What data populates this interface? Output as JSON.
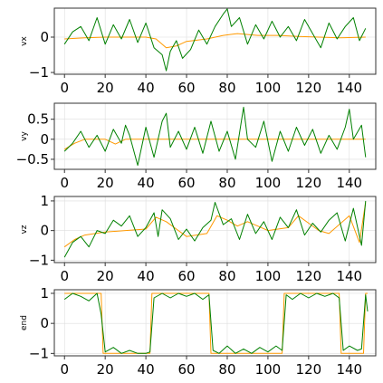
{
  "colors": {
    "target": "#ff9900",
    "prediction": "#008000"
  },
  "chart_data": [
    {
      "type": "line",
      "ylabel": "vx",
      "xlim": [
        -5,
        153
      ],
      "ylim": [
        -1.05,
        0.82
      ],
      "xticks": [
        0,
        20,
        40,
        60,
        80,
        100,
        120,
        140
      ],
      "yticks": [
        -1,
        0
      ],
      "grid": true,
      "series": [
        {
          "color": "#ff9900",
          "points": [
            [
              0,
              -0.05
            ],
            [
              10,
              -0.02
            ],
            [
              20,
              0.0
            ],
            [
              30,
              0.0
            ],
            [
              40,
              0.0
            ],
            [
              45,
              -0.05
            ],
            [
              50,
              -0.3
            ],
            [
              55,
              -0.25
            ],
            [
              60,
              -0.12
            ],
            [
              70,
              -0.05
            ],
            [
              78,
              0.05
            ],
            [
              85,
              0.1
            ],
            [
              95,
              0.05
            ],
            [
              105,
              0.05
            ],
            [
              115,
              0.02
            ],
            [
              125,
              0.0
            ],
            [
              135,
              -0.02
            ],
            [
              148,
              0.0
            ]
          ]
        },
        {
          "color": "#008000",
          "points": [
            [
              0,
              -0.2
            ],
            [
              4,
              0.15
            ],
            [
              8,
              0.3
            ],
            [
              12,
              -0.1
            ],
            [
              16,
              0.55
            ],
            [
              20,
              -0.2
            ],
            [
              24,
              0.35
            ],
            [
              28,
              -0.05
            ],
            [
              32,
              0.5
            ],
            [
              36,
              -0.15
            ],
            [
              40,
              0.4
            ],
            [
              44,
              -0.3
            ],
            [
              48,
              -0.5
            ],
            [
              50,
              -0.95
            ],
            [
              52,
              -0.4
            ],
            [
              55,
              -0.1
            ],
            [
              58,
              -0.6
            ],
            [
              62,
              -0.35
            ],
            [
              66,
              0.2
            ],
            [
              70,
              -0.2
            ],
            [
              74,
              0.3
            ],
            [
              78,
              0.65
            ],
            [
              80,
              0.8
            ],
            [
              82,
              0.3
            ],
            [
              86,
              0.55
            ],
            [
              90,
              -0.2
            ],
            [
              94,
              0.35
            ],
            [
              98,
              -0.05
            ],
            [
              102,
              0.45
            ],
            [
              106,
              0.0
            ],
            [
              110,
              0.3
            ],
            [
              114,
              -0.1
            ],
            [
              118,
              0.5
            ],
            [
              122,
              0.1
            ],
            [
              126,
              -0.3
            ],
            [
              130,
              0.4
            ],
            [
              134,
              -0.05
            ],
            [
              138,
              0.3
            ],
            [
              142,
              0.55
            ],
            [
              145,
              -0.1
            ],
            [
              148,
              0.25
            ]
          ]
        }
      ]
    },
    {
      "type": "line",
      "ylabel": "vy",
      "xlim": [
        -5,
        153
      ],
      "ylim": [
        -0.75,
        0.9
      ],
      "xticks": [
        0,
        20,
        40,
        60,
        80,
        100,
        120,
        140
      ],
      "yticks": [
        -0.5,
        0.0,
        0.5
      ],
      "grid": true,
      "series": [
        {
          "color": "#ff9900",
          "points": [
            [
              0,
              -0.25
            ],
            [
              5,
              -0.1
            ],
            [
              10,
              0.0
            ],
            [
              20,
              0.0
            ],
            [
              25,
              -0.12
            ],
            [
              30,
              0.0
            ],
            [
              40,
              0.0
            ],
            [
              60,
              0.0
            ],
            [
              80,
              0.0
            ],
            [
              100,
              0.0
            ],
            [
              120,
              0.0
            ],
            [
              148,
              0.0
            ]
          ]
        },
        {
          "color": "#008000",
          "points": [
            [
              0,
              -0.3
            ],
            [
              4,
              -0.1
            ],
            [
              8,
              0.2
            ],
            [
              12,
              -0.2
            ],
            [
              16,
              0.1
            ],
            [
              20,
              -0.3
            ],
            [
              24,
              0.25
            ],
            [
              28,
              -0.1
            ],
            [
              30,
              0.35
            ],
            [
              32,
              0.1
            ],
            [
              36,
              -0.65
            ],
            [
              40,
              0.3
            ],
            [
              44,
              -0.45
            ],
            [
              48,
              0.45
            ],
            [
              50,
              0.65
            ],
            [
              52,
              -0.2
            ],
            [
              56,
              0.2
            ],
            [
              60,
              -0.25
            ],
            [
              64,
              0.3
            ],
            [
              68,
              -0.35
            ],
            [
              72,
              0.45
            ],
            [
              76,
              -0.3
            ],
            [
              80,
              0.2
            ],
            [
              84,
              -0.5
            ],
            [
              88,
              0.8
            ],
            [
              90,
              0.0
            ],
            [
              94,
              -0.2
            ],
            [
              98,
              0.45
            ],
            [
              102,
              -0.55
            ],
            [
              106,
              0.2
            ],
            [
              110,
              -0.3
            ],
            [
              114,
              0.3
            ],
            [
              118,
              -0.15
            ],
            [
              122,
              0.25
            ],
            [
              126,
              -0.35
            ],
            [
              130,
              0.1
            ],
            [
              134,
              -0.25
            ],
            [
              138,
              0.3
            ],
            [
              140,
              0.75
            ],
            [
              142,
              0.0
            ],
            [
              146,
              0.35
            ],
            [
              148,
              -0.45
            ]
          ]
        }
      ]
    },
    {
      "type": "line",
      "ylabel": "vz",
      "xlim": [
        -5,
        153
      ],
      "ylim": [
        -1.08,
        1.15
      ],
      "xticks": [
        0,
        20,
        40,
        60,
        80,
        100,
        120,
        140
      ],
      "yticks": [
        -1,
        0,
        1
      ],
      "grid": true,
      "series": [
        {
          "color": "#ff9900",
          "points": [
            [
              0,
              -0.55
            ],
            [
              5,
              -0.3
            ],
            [
              10,
              -0.15
            ],
            [
              20,
              -0.05
            ],
            [
              30,
              0.0
            ],
            [
              40,
              0.05
            ],
            [
              45,
              0.45
            ],
            [
              50,
              0.3
            ],
            [
              55,
              0.05
            ],
            [
              60,
              -0.2
            ],
            [
              70,
              -0.1
            ],
            [
              75,
              0.5
            ],
            [
              80,
              0.35
            ],
            [
              85,
              0.15
            ],
            [
              90,
              0.3
            ],
            [
              95,
              0.15
            ],
            [
              100,
              0.0
            ],
            [
              110,
              0.1
            ],
            [
              115,
              0.5
            ],
            [
              120,
              0.25
            ],
            [
              125,
              0.0
            ],
            [
              130,
              -0.1
            ],
            [
              140,
              0.5
            ],
            [
              145,
              -0.4
            ],
            [
              148,
              0.95
            ]
          ]
        },
        {
          "color": "#008000",
          "points": [
            [
              0,
              -0.9
            ],
            [
              4,
              -0.4
            ],
            [
              8,
              -0.2
            ],
            [
              12,
              -0.55
            ],
            [
              16,
              0.0
            ],
            [
              20,
              -0.1
            ],
            [
              24,
              0.35
            ],
            [
              28,
              0.15
            ],
            [
              32,
              0.5
            ],
            [
              36,
              -0.2
            ],
            [
              40,
              0.1
            ],
            [
              44,
              0.6
            ],
            [
              46,
              -0.2
            ],
            [
              48,
              0.7
            ],
            [
              52,
              0.4
            ],
            [
              56,
              -0.3
            ],
            [
              60,
              0.05
            ],
            [
              64,
              -0.35
            ],
            [
              68,
              0.1
            ],
            [
              72,
              0.35
            ],
            [
              74,
              0.95
            ],
            [
              78,
              0.2
            ],
            [
              82,
              0.4
            ],
            [
              86,
              -0.3
            ],
            [
              90,
              0.55
            ],
            [
              94,
              -0.1
            ],
            [
              98,
              0.3
            ],
            [
              102,
              -0.3
            ],
            [
              106,
              0.45
            ],
            [
              110,
              0.1
            ],
            [
              114,
              0.7
            ],
            [
              118,
              -0.15
            ],
            [
              122,
              0.25
            ],
            [
              126,
              -0.05
            ],
            [
              130,
              0.35
            ],
            [
              134,
              0.6
            ],
            [
              138,
              -0.35
            ],
            [
              142,
              0.75
            ],
            [
              146,
              -0.5
            ],
            [
              148,
              1.0
            ]
          ]
        }
      ]
    },
    {
      "type": "line",
      "ylabel": "end",
      "xlim": [
        -5,
        153
      ],
      "ylim": [
        -1.08,
        1.12
      ],
      "xticks": [
        0,
        20,
        40,
        60,
        80,
        100,
        120,
        140
      ],
      "yticks": [
        -1,
        0,
        1
      ],
      "grid": true,
      "series": [
        {
          "color": "#ff9900",
          "points": [
            [
              0,
              1.0
            ],
            [
              18,
              1.0
            ],
            [
              19,
              -1.0
            ],
            [
              42,
              -1.0
            ],
            [
              43,
              1.0
            ],
            [
              71,
              1.0
            ],
            [
              72,
              -1.0
            ],
            [
              107,
              -1.0
            ],
            [
              108,
              1.0
            ],
            [
              135,
              1.0
            ],
            [
              136,
              -1.0
            ],
            [
              147,
              -1.0
            ],
            [
              148,
              1.0
            ],
            [
              149,
              1.0
            ]
          ]
        },
        {
          "color": "#008000",
          "points": [
            [
              0,
              0.8
            ],
            [
              4,
              1.0
            ],
            [
              8,
              0.9
            ],
            [
              12,
              0.75
            ],
            [
              16,
              1.0
            ],
            [
              18,
              0.3
            ],
            [
              20,
              -0.95
            ],
            [
              24,
              -0.8
            ],
            [
              28,
              -1.0
            ],
            [
              32,
              -0.9
            ],
            [
              36,
              -1.0
            ],
            [
              40,
              -1.0
            ],
            [
              42,
              -0.95
            ],
            [
              44,
              0.85
            ],
            [
              48,
              1.0
            ],
            [
              52,
              0.85
            ],
            [
              56,
              1.0
            ],
            [
              60,
              0.9
            ],
            [
              64,
              1.0
            ],
            [
              68,
              0.8
            ],
            [
              71,
              0.95
            ],
            [
              73,
              -0.9
            ],
            [
              76,
              -1.0
            ],
            [
              80,
              -0.75
            ],
            [
              84,
              -1.0
            ],
            [
              88,
              -0.85
            ],
            [
              92,
              -1.0
            ],
            [
              96,
              -0.8
            ],
            [
              100,
              -0.95
            ],
            [
              104,
              -0.75
            ],
            [
              107,
              -0.9
            ],
            [
              109,
              0.95
            ],
            [
              112,
              0.8
            ],
            [
              116,
              1.0
            ],
            [
              120,
              0.85
            ],
            [
              124,
              1.0
            ],
            [
              128,
              0.9
            ],
            [
              132,
              1.0
            ],
            [
              135,
              0.85
            ],
            [
              137,
              -0.9
            ],
            [
              140,
              -0.75
            ],
            [
              144,
              -0.9
            ],
            [
              146,
              -0.85
            ],
            [
              148,
              0.95
            ],
            [
              149,
              0.4
            ]
          ]
        }
      ]
    }
  ]
}
